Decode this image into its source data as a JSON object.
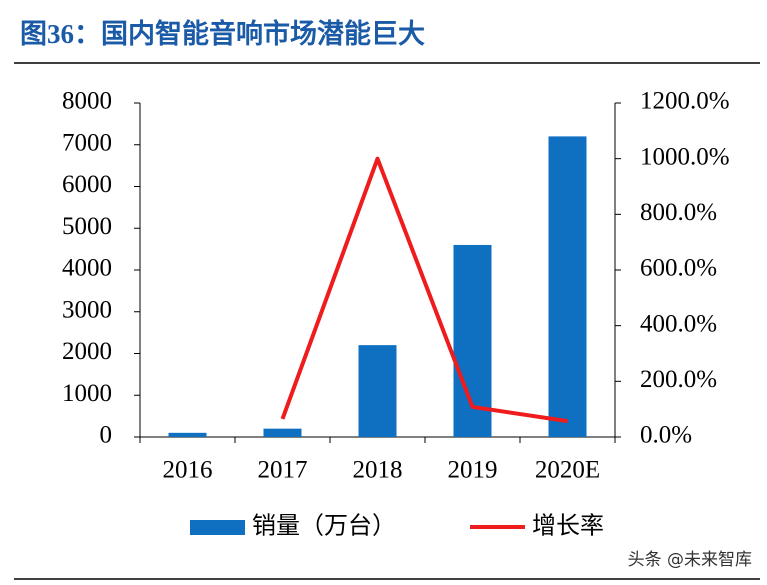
{
  "chart_data": {
    "type": "bar_line",
    "title": "图36：国内智能音响市场潜能巨大",
    "categories": [
      "2016",
      "2017",
      "2018",
      "2019",
      "2020E"
    ],
    "series": [
      {
        "name": "销量（万台）",
        "type": "bar",
        "color": "#0f6fc0",
        "values": [
          100,
          200,
          2200,
          4600,
          7200
        ]
      },
      {
        "name": "增长率",
        "type": "line",
        "axis": "y2",
        "color": "#ee1c1c",
        "values": [
          null,
          65,
          1000,
          108,
          57
        ]
      }
    ],
    "ylim": [
      0,
      8000
    ],
    "yticks": [
      0,
      1000,
      2000,
      3000,
      4000,
      5000,
      6000,
      7000,
      8000
    ],
    "y2lim": [
      0,
      1200
    ],
    "y2ticks": [
      {
        "value": 0,
        "label": "0.0%"
      },
      {
        "value": 200,
        "label": "200.0%"
      },
      {
        "value": 400,
        "label": "400.0%"
      },
      {
        "value": 600,
        "label": "600.0%"
      },
      {
        "value": 800,
        "label": "800.0%"
      },
      {
        "value": 1000,
        "label": "1000.0%"
      },
      {
        "value": 1200,
        "label": "1200.0%"
      }
    ],
    "grid": false,
    "legend": "bottom",
    "watermark": "头条 @未来智库"
  }
}
